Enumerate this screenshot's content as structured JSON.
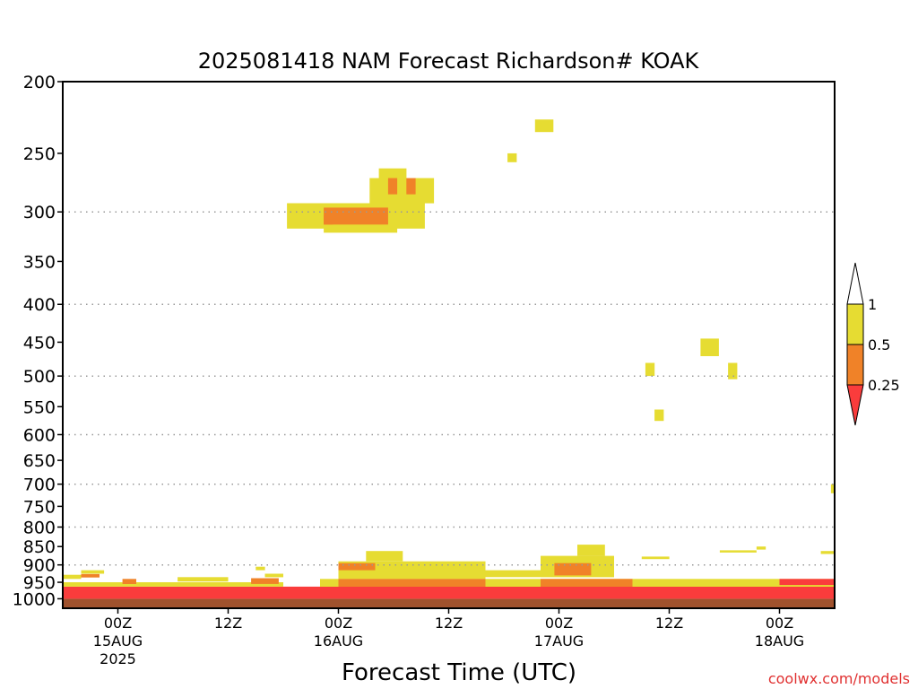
{
  "chart_data": {
    "type": "heatmap",
    "title": "2025081418 NAM Forecast Richardson# KOAK",
    "xlabel": "Forecast Time (UTC)",
    "ylabel": "",
    "x_axis": {
      "unit": "hours since 2025-08-14 18Z",
      "range": [
        0,
        84
      ],
      "ticks": [
        {
          "value": 6,
          "line1": "00Z",
          "line2": "15AUG",
          "line3": "2025"
        },
        {
          "value": 18,
          "line1": "12Z",
          "line2": "",
          "line3": ""
        },
        {
          "value": 30,
          "line1": "00Z",
          "line2": "16AUG",
          "line3": ""
        },
        {
          "value": 42,
          "line1": "12Z",
          "line2": "",
          "line3": ""
        },
        {
          "value": 54,
          "line1": "00Z",
          "line2": "17AUG",
          "line3": ""
        },
        {
          "value": 66,
          "line1": "12Z",
          "line2": "",
          "line3": ""
        },
        {
          "value": 78,
          "line1": "00Z",
          "line2": "18AUG",
          "line3": ""
        }
      ]
    },
    "y_axis": {
      "unit": "hPa",
      "scale": "log",
      "inverted": true,
      "range": [
        1030,
        200
      ],
      "ticks": [
        200,
        250,
        300,
        350,
        400,
        450,
        500,
        550,
        600,
        650,
        700,
        750,
        800,
        850,
        900,
        950,
        1000
      ],
      "gridlines": [
        300,
        400,
        500,
        600,
        700,
        800,
        900
      ]
    },
    "legend": {
      "placement": "right",
      "levels": [
        "1",
        "0.5",
        "0.25"
      ],
      "bins": [
        {
          "range": "> 1",
          "color": "#ffffff"
        },
        {
          "range": "0.5 - 1",
          "color": "#e6dc32"
        },
        {
          "range": "0.25 - 0.5",
          "color": "#f08228"
        },
        {
          "range": "< 0.25",
          "color": "#fa3c3c"
        }
      ]
    },
    "surface_color": "#a0522d",
    "cells": [
      {
        "t0": 24.4,
        "t1": 39.4,
        "p0": 292,
        "p1": 316,
        "bin": "0.5 - 1"
      },
      {
        "t0": 28.4,
        "t1": 36.4,
        "p0": 312,
        "p1": 320,
        "bin": "0.5 - 1"
      },
      {
        "t0": 33.4,
        "t1": 40.4,
        "p0": 270,
        "p1": 292,
        "bin": "0.5 - 1"
      },
      {
        "t0": 34.4,
        "t1": 37.4,
        "p0": 262,
        "p1": 272,
        "bin": "0.5 - 1"
      },
      {
        "t0": 35.4,
        "t1": 39.4,
        "p0": 284,
        "p1": 290,
        "bin": "0.5 - 1"
      },
      {
        "t0": 28.4,
        "t1": 35.4,
        "p0": 296,
        "p1": 312,
        "bin": "0.25 - 0.5"
      },
      {
        "t0": 35.4,
        "t1": 36.4,
        "p0": 270,
        "p1": 284,
        "bin": "0.25 - 0.5"
      },
      {
        "t0": 37.4,
        "t1": 38.4,
        "p0": 270,
        "p1": 284,
        "bin": "0.25 - 0.5"
      },
      {
        "t0": 28.4,
        "t1": 29.4,
        "p0": 303,
        "p1": 312,
        "bin": "0.25 - 0.5"
      },
      {
        "t0": 48.4,
        "t1": 49.4,
        "p0": 250,
        "p1": 257,
        "bin": "0.5 - 1"
      },
      {
        "t0": 51.4,
        "t1": 53.4,
        "p0": 225,
        "p1": 234,
        "bin": "0.5 - 1"
      },
      {
        "t0": 63.4,
        "t1": 64.4,
        "p0": 480,
        "p1": 500,
        "bin": "0.5 - 1"
      },
      {
        "t0": 64.4,
        "t1": 65.4,
        "p0": 555,
        "p1": 575,
        "bin": "0.5 - 1"
      },
      {
        "t0": 69.4,
        "t1": 71.4,
        "p0": 445,
        "p1": 470,
        "bin": "0.5 - 1"
      },
      {
        "t0": 72.4,
        "t1": 73.4,
        "p0": 480,
        "p1": 505,
        "bin": "0.5 - 1"
      },
      {
        "t0": 83.6,
        "t1": 84,
        "p0": 700,
        "p1": 720,
        "bin": "0.5 - 1"
      },
      {
        "t0": 0,
        "t1": 84,
        "p0": 1000,
        "p1": 1030,
        "bin": "surface"
      },
      {
        "t0": 0,
        "t1": 84,
        "p0": 963,
        "p1": 1000,
        "bin": "< 0.25"
      },
      {
        "t0": 2,
        "t1": 4.5,
        "p0": 915,
        "p1": 925,
        "bin": "0.5 - 1"
      },
      {
        "t0": 0,
        "t1": 2,
        "p0": 928,
        "p1": 940,
        "bin": "0.5 - 1"
      },
      {
        "t0": 2,
        "t1": 4,
        "p0": 926,
        "p1": 936,
        "bin": "0.25 - 0.5"
      },
      {
        "t0": 0,
        "t1": 24,
        "p0": 950,
        "p1": 963,
        "bin": "0.5 - 1"
      },
      {
        "t0": 6.5,
        "t1": 8,
        "p0": 940,
        "p1": 955,
        "bin": "0.25 - 0.5"
      },
      {
        "t0": 12.5,
        "t1": 18,
        "p0": 935,
        "p1": 948,
        "bin": "0.5 - 1"
      },
      {
        "t0": 20.5,
        "t1": 23.5,
        "p0": 938,
        "p1": 955,
        "bin": "0.25 - 0.5"
      },
      {
        "t0": 21,
        "t1": 22,
        "p0": 905,
        "p1": 915,
        "bin": "0.5 - 1"
      },
      {
        "t0": 22,
        "t1": 24,
        "p0": 925,
        "p1": 935,
        "bin": "0.5 - 1"
      },
      {
        "t0": 28,
        "t1": 84,
        "p0": 940,
        "p1": 963,
        "bin": "0.5 - 1"
      },
      {
        "t0": 30,
        "t1": 46,
        "p0": 890,
        "p1": 940,
        "bin": "0.5 - 1"
      },
      {
        "t0": 33,
        "t1": 37,
        "p0": 862,
        "p1": 890,
        "bin": "0.5 - 1"
      },
      {
        "t0": 30,
        "t1": 34,
        "p0": 895,
        "p1": 915,
        "bin": "0.25 - 0.5"
      },
      {
        "t0": 30,
        "t1": 46,
        "p0": 940,
        "p1": 963,
        "bin": "0.25 - 0.5"
      },
      {
        "t0": 46,
        "t1": 52,
        "p0": 915,
        "p1": 935,
        "bin": "0.5 - 1"
      },
      {
        "t0": 52,
        "t1": 60,
        "p0": 875,
        "p1": 935,
        "bin": "0.5 - 1"
      },
      {
        "t0": 56,
        "t1": 59,
        "p0": 845,
        "p1": 875,
        "bin": "0.5 - 1"
      },
      {
        "t0": 53.5,
        "t1": 57.5,
        "p0": 895,
        "p1": 930,
        "bin": "0.25 - 0.5"
      },
      {
        "t0": 52,
        "t1": 62,
        "p0": 940,
        "p1": 963,
        "bin": "0.25 - 0.5"
      },
      {
        "t0": 63,
        "t1": 66,
        "p0": 877,
        "p1": 884,
        "bin": "0.5 - 1"
      },
      {
        "t0": 68,
        "t1": 74,
        "p0": 945,
        "p1": 955,
        "bin": "0.5 - 1"
      },
      {
        "t0": 71.5,
        "t1": 75.5,
        "p0": 860,
        "p1": 866,
        "bin": "0.5 - 1"
      },
      {
        "t0": 75.5,
        "t1": 76.5,
        "p0": 850,
        "p1": 858,
        "bin": "0.5 - 1"
      },
      {
        "t0": 78,
        "t1": 84,
        "p0": 940,
        "p1": 958,
        "bin": "< 0.25"
      },
      {
        "t0": 82.5,
        "t1": 84,
        "p0": 862,
        "p1": 870,
        "bin": "0.5 - 1"
      }
    ]
  },
  "watermark": "coolwx.com/models"
}
